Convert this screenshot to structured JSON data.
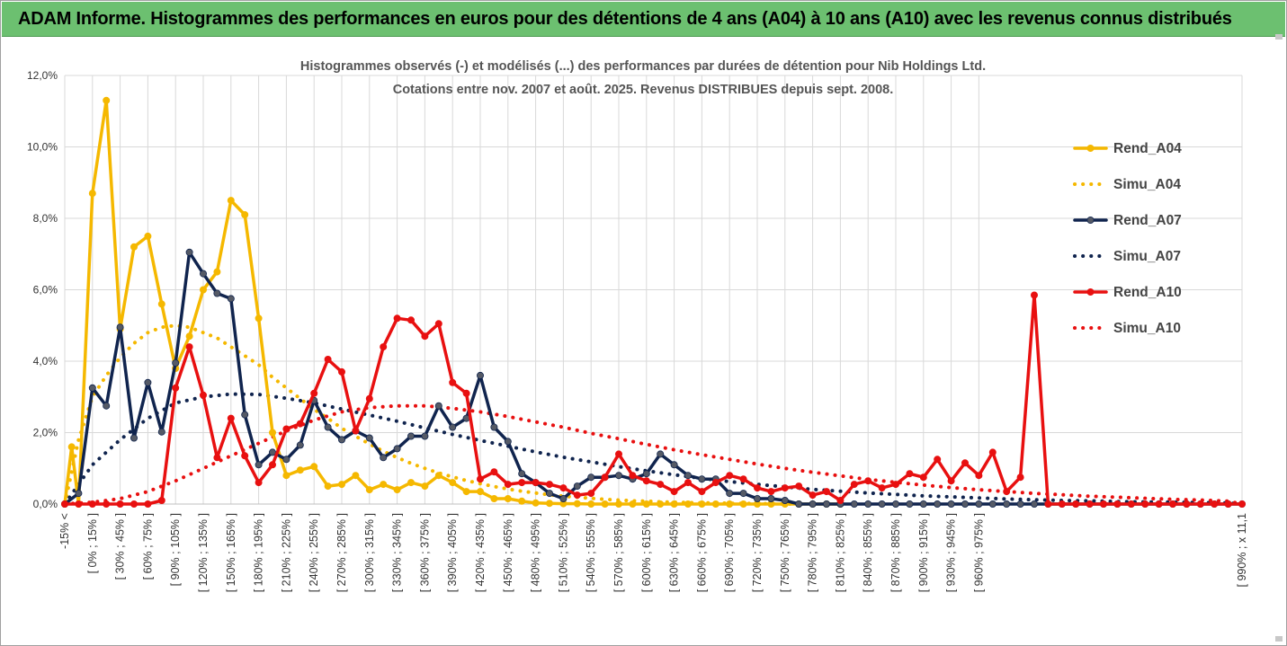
{
  "banner": {
    "title": "ADAM Informe. Histogrammes des performances en euros pour des détentions de 4 ans (A04) à 10 ans (A10) avec les revenus connus distribués"
  },
  "colors": {
    "banner_bg": "#6cc070",
    "A04": "#f5b800",
    "A07": "#10244e",
    "A07_marker": "#555a66",
    "A10": "#e81010",
    "grid": "#d9d9d9"
  },
  "chart_data": {
    "type": "line",
    "title": [
      "Histogrammes observés (-) et modélisés (...) des performances par durées de détention pour Nib Holdings Ltd.",
      "Cotations entre nov. 2007 et août. 2025. Revenus DISTRIBUES depuis sept. 2008."
    ],
    "ylim": [
      0,
      0.12
    ],
    "yticks": [
      "0,0%",
      "2,0%",
      "4,0%",
      "6,0%",
      "8,0%",
      "10,0%",
      "12,0%"
    ],
    "ytick_values": [
      0,
      0.02,
      0.04,
      0.06,
      0.08,
      0.1,
      0.12
    ],
    "grid": true,
    "legend_position": "right",
    "x_count": 86,
    "x_labels_every_other": [
      "-15% <",
      "[ 0% ; 15% ]",
      "[ 30% ; 45% ]",
      "[ 60% ; 75% ]",
      "[ 90% ; 105% ]",
      "[ 120% ; 135% ]",
      "[ 150% ; 165% ]",
      "[ 180% ; 195% ]",
      "[ 210% ; 225% ]",
      "[ 240% ; 255% ]",
      "[ 270% ; 285% ]",
      "[ 300% ; 315% ]",
      "[ 330% ; 345% ]",
      "[ 360% ; 375% ]",
      "[ 390% ; 405% ]",
      "[ 420% ; 435% ]",
      "[ 450% ; 465% ]",
      "[ 480% ; 495% ]",
      "[ 510% ; 525% ]",
      "[ 540% ; 555% ]",
      "[ 570% ; 585% ]",
      "[ 600% ; 615% ]",
      "[ 630% ; 645% ]",
      "[ 660% ; 675% ]",
      "[ 690% ; 705% ]",
      "[ 720% ; 735% ]",
      "[ 750% ; 765% ]",
      "[ 780% ; 795% ]",
      "[ 810% ; 825% ]",
      "[ 840% ; 855% ]",
      "[ 870% ; 885% ]",
      "[ 900% ; 915% ]",
      "[ 930% ; 945% ]",
      "[ 960% ; 975% ]",
      "[ 990% ; x 11,1"
    ],
    "x_label_indices": [
      0,
      2,
      4,
      6,
      8,
      10,
      12,
      14,
      16,
      18,
      20,
      22,
      24,
      26,
      28,
      30,
      32,
      34,
      36,
      38,
      40,
      42,
      44,
      46,
      48,
      50,
      52,
      54,
      56,
      58,
      60,
      62,
      64,
      66,
      85
    ],
    "series": [
      {
        "name": "Rend_A04",
        "style": "solid",
        "markers": true,
        "color": "#f5b800",
        "x": [
          0,
          0.5,
          1,
          2,
          3,
          4,
          5,
          6,
          7,
          8,
          9,
          10,
          11,
          12,
          13,
          14,
          15,
          16,
          17,
          18,
          19,
          20,
          21,
          22,
          23,
          24,
          25,
          26,
          27,
          28,
          29,
          30,
          31,
          32,
          33,
          34,
          35,
          36,
          37,
          38,
          39,
          40,
          41,
          42,
          43,
          44,
          45,
          46,
          47,
          48,
          49,
          50,
          51,
          52,
          53,
          54,
          55,
          56
        ],
        "values": [
          0.0,
          0.016,
          0.0,
          0.087,
          0.113,
          0.049,
          0.072,
          0.075,
          0.056,
          0.038,
          0.047,
          0.06,
          0.065,
          0.085,
          0.081,
          0.052,
          0.02,
          0.008,
          0.0095,
          0.0105,
          0.005,
          0.0055,
          0.008,
          0.004,
          0.0055,
          0.004,
          0.006,
          0.005,
          0.008,
          0.006,
          0.0035,
          0.0035,
          0.0015,
          0.0015,
          0.0008,
          0.0003,
          0.0002,
          0.0001,
          0.0001,
          0.0,
          0.0,
          0.0,
          0.0,
          0.0,
          0.0,
          0.0,
          0.0,
          0.0,
          0.0,
          0.0,
          0.0,
          0.0,
          0.0,
          0.0,
          0.0,
          0.0,
          0.0,
          0.0
        ]
      },
      {
        "name": "Simu_A04",
        "style": "dotted",
        "color": "#f5b800",
        "x": [
          0,
          1,
          2,
          3,
          4,
          5,
          6,
          7,
          8,
          9,
          10,
          11,
          12,
          13,
          14,
          15,
          16,
          17,
          18,
          19,
          20,
          21,
          22,
          23,
          24,
          25,
          26,
          27,
          28,
          29,
          30,
          31,
          32,
          33,
          34,
          35,
          36,
          37,
          38,
          39,
          40,
          41,
          42,
          43,
          44,
          45,
          46,
          47,
          48,
          49,
          50,
          51,
          52,
          53
        ],
        "values": [
          0.0,
          0.018,
          0.03,
          0.036,
          0.041,
          0.045,
          0.048,
          0.0495,
          0.05,
          0.0495,
          0.048,
          0.0465,
          0.044,
          0.0415,
          0.039,
          0.0355,
          0.0325,
          0.0295,
          0.0265,
          0.024,
          0.0212,
          0.019,
          0.0168,
          0.0148,
          0.013,
          0.0114,
          0.01,
          0.0087,
          0.0076,
          0.0066,
          0.0057,
          0.0049,
          0.0042,
          0.0036,
          0.0031,
          0.0026,
          0.0022,
          0.0019,
          0.0016,
          0.0013,
          0.0011,
          0.0009,
          0.0008,
          0.0006,
          0.0005,
          0.0004,
          0.0003,
          0.0003,
          0.0002,
          0.0002,
          0.0001,
          0.0001,
          0.0,
          0.0
        ]
      },
      {
        "name": "Rend_A07",
        "style": "solid",
        "markers": true,
        "color": "#10244e",
        "x": [
          0,
          1,
          2,
          3,
          4,
          5,
          6,
          7,
          8,
          9,
          10,
          11,
          12,
          13,
          14,
          15,
          16,
          17,
          18,
          19,
          20,
          21,
          22,
          23,
          24,
          25,
          26,
          27,
          28,
          29,
          30,
          31,
          32,
          33,
          34,
          35,
          36,
          37,
          38,
          39,
          40,
          41,
          42,
          43,
          44,
          45,
          46,
          47,
          48,
          49,
          50,
          51,
          52,
          53,
          54,
          55,
          56,
          57,
          58,
          59,
          60,
          61,
          62,
          63,
          64,
          65,
          66,
          67,
          68,
          69,
          70,
          71,
          72,
          73,
          74,
          75,
          76,
          77,
          78,
          79,
          80,
          81,
          82,
          83,
          84,
          85
        ],
        "values": [
          0.0,
          0.003,
          0.0325,
          0.0275,
          0.0495,
          0.0185,
          0.034,
          0.0202,
          0.0395,
          0.0705,
          0.0645,
          0.059,
          0.0575,
          0.025,
          0.011,
          0.0145,
          0.0125,
          0.0165,
          0.029,
          0.0215,
          0.018,
          0.0205,
          0.0185,
          0.013,
          0.0155,
          0.019,
          0.019,
          0.0275,
          0.0215,
          0.024,
          0.036,
          0.0215,
          0.0175,
          0.0085,
          0.006,
          0.003,
          0.0015,
          0.005,
          0.0075,
          0.0075,
          0.008,
          0.007,
          0.0085,
          0.014,
          0.011,
          0.008,
          0.007,
          0.007,
          0.003,
          0.003,
          0.0015,
          0.0015,
          0.001,
          0.0,
          0.0,
          0.0,
          0.0,
          0.0,
          0.0,
          0.0,
          0.0,
          0.0,
          0.0,
          0.0,
          0.0,
          0.0,
          0.0,
          0.0,
          0.0,
          0.0,
          0.0,
          0.0,
          0.0,
          0.0,
          0.0,
          0.0,
          0.0,
          0.0,
          0.0,
          0.0,
          0.0,
          0.0,
          0.0,
          0.0,
          0.0,
          0.0
        ]
      },
      {
        "name": "Simu_A07",
        "style": "dotted",
        "color": "#10244e",
        "x": [
          0,
          2,
          4,
          6,
          8,
          10,
          12,
          14,
          16,
          18,
          20,
          22,
          24,
          26,
          28,
          30,
          32,
          34,
          36,
          38,
          40,
          42,
          44,
          46,
          48,
          50,
          52,
          54,
          56,
          58,
          60,
          62,
          64,
          66,
          68,
          70,
          72,
          74,
          76,
          78,
          80,
          82,
          84,
          85
        ],
        "values": [
          0.0,
          0.011,
          0.018,
          0.024,
          0.0283,
          0.03,
          0.0308,
          0.0307,
          0.0296,
          0.0283,
          0.0266,
          0.0249,
          0.0232,
          0.0213,
          0.0195,
          0.0178,
          0.0162,
          0.0146,
          0.0131,
          0.0118,
          0.0105,
          0.0093,
          0.0082,
          0.0072,
          0.0063,
          0.0055,
          0.0048,
          0.0041,
          0.0036,
          0.0031,
          0.0027,
          0.0023,
          0.002,
          0.0017,
          0.0014,
          0.0012,
          0.001,
          0.0009,
          0.0007,
          0.0006,
          0.0005,
          0.0004,
          0.0003,
          0.0
        ]
      },
      {
        "name": "Rend_A10",
        "style": "solid",
        "markers": true,
        "color": "#e81010",
        "x": [
          0,
          1,
          2,
          3,
          4,
          5,
          6,
          7,
          8,
          9,
          10,
          11,
          12,
          13,
          14,
          15,
          16,
          17,
          18,
          19,
          20,
          21,
          22,
          23,
          24,
          25,
          26,
          27,
          28,
          29,
          30,
          31,
          32,
          33,
          34,
          35,
          36,
          37,
          38,
          39,
          40,
          41,
          42,
          43,
          44,
          45,
          46,
          47,
          48,
          49,
          50,
          51,
          52,
          53,
          54,
          55,
          56,
          57,
          58,
          59,
          60,
          61,
          62,
          63,
          64,
          65,
          66,
          67,
          68,
          69,
          70,
          71,
          72,
          73,
          74,
          75,
          76,
          77,
          78,
          79,
          80,
          81,
          82,
          83,
          84,
          85
        ],
        "values": [
          0.0,
          0.0,
          0.0,
          0.0,
          0.0,
          0.0,
          0.0,
          0.001,
          0.0325,
          0.044,
          0.0305,
          0.013,
          0.024,
          0.0135,
          0.006,
          0.011,
          0.021,
          0.0225,
          0.031,
          0.0405,
          0.037,
          0.0205,
          0.0295,
          0.044,
          0.052,
          0.0515,
          0.047,
          0.0505,
          0.034,
          0.031,
          0.007,
          0.009,
          0.0055,
          0.006,
          0.006,
          0.0055,
          0.0045,
          0.0025,
          0.003,
          0.0075,
          0.014,
          0.008,
          0.0065,
          0.0055,
          0.0035,
          0.006,
          0.0035,
          0.006,
          0.008,
          0.007,
          0.0045,
          0.0035,
          0.0045,
          0.005,
          0.0025,
          0.0035,
          0.001,
          0.0055,
          0.0065,
          0.0045,
          0.0055,
          0.0085,
          0.0075,
          0.0125,
          0.0065,
          0.0115,
          0.008,
          0.0145,
          0.0035,
          0.0075,
          0.0585,
          0.0,
          0.0,
          0.0,
          0.0,
          0.0,
          0.0,
          0.0,
          0.0,
          0.0,
          0.0,
          0.0,
          0.0,
          0.0,
          0.0,
          0.0
        ]
      },
      {
        "name": "Simu_A10",
        "style": "dotted",
        "color": "#e81010",
        "x": [
          0,
          2,
          4,
          6,
          8,
          10,
          12,
          14,
          16,
          18,
          20,
          22,
          24,
          26,
          28,
          30,
          32,
          34,
          36,
          38,
          40,
          42,
          44,
          46,
          48,
          50,
          52,
          54,
          56,
          58,
          60,
          62,
          64,
          66,
          68,
          70,
          72,
          74,
          76,
          78,
          80,
          82,
          84,
          85
        ],
        "values": [
          0.0,
          0.0005,
          0.0015,
          0.0035,
          0.0065,
          0.01,
          0.0135,
          0.017,
          0.0205,
          0.0235,
          0.0258,
          0.027,
          0.0275,
          0.0275,
          0.0268,
          0.0258,
          0.0245,
          0.023,
          0.0215,
          0.0198,
          0.0183,
          0.0167,
          0.0152,
          0.0138,
          0.0125,
          0.0112,
          0.01,
          0.0089,
          0.0079,
          0.0069,
          0.0061,
          0.0053,
          0.0046,
          0.004,
          0.0035,
          0.003,
          0.0026,
          0.0022,
          0.0019,
          0.0016,
          0.0013,
          0.0011,
          0.0008,
          0.0
        ]
      }
    ]
  }
}
